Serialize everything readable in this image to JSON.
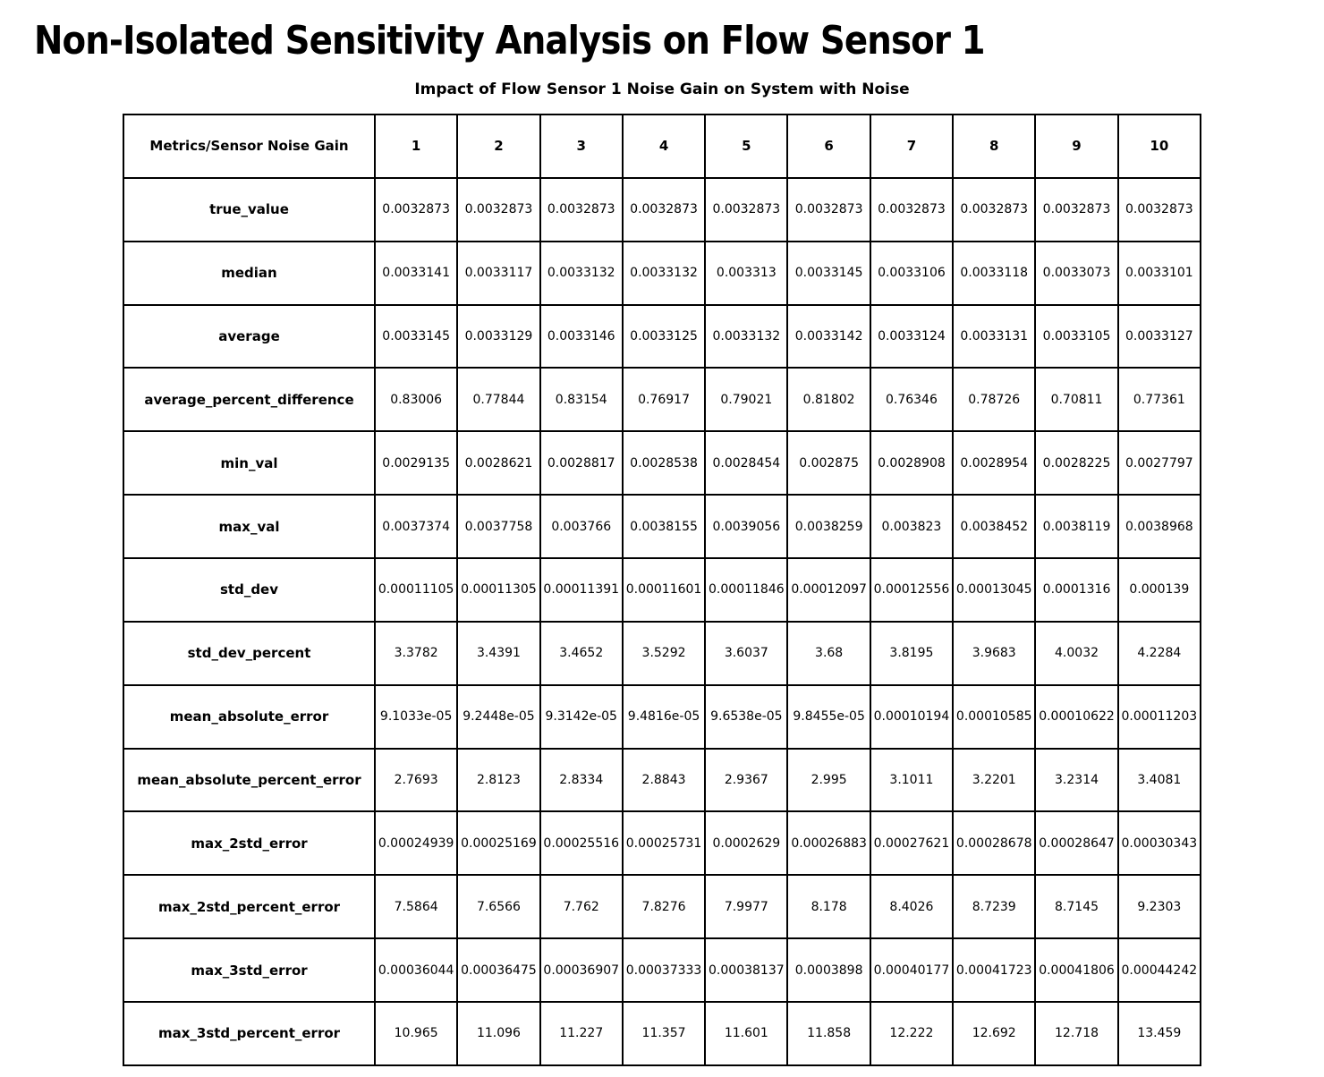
{
  "title": "Non-Isolated Sensitivity Analysis on Flow Sensor 1",
  "subtitle": "Impact of Flow Sensor 1 Noise Gain on System with Noise",
  "chart_data": {
    "type": "table",
    "title": "Non-Isolated Sensitivity Analysis on Flow Sensor 1",
    "subtitle": "Impact of Flow Sensor 1 Noise Gain on System with Noise",
    "columns": [
      "Metrics/Sensor Noise Gain",
      "1",
      "2",
      "3",
      "4",
      "5",
      "6",
      "7",
      "8",
      "9",
      "10"
    ],
    "rows": [
      {
        "metric": "true_value",
        "values": [
          "0.0032873",
          "0.0032873",
          "0.0032873",
          "0.0032873",
          "0.0032873",
          "0.0032873",
          "0.0032873",
          "0.0032873",
          "0.0032873",
          "0.0032873"
        ]
      },
      {
        "metric": "median",
        "values": [
          "0.0033141",
          "0.0033117",
          "0.0033132",
          "0.0033132",
          "0.003313",
          "0.0033145",
          "0.0033106",
          "0.0033118",
          "0.0033073",
          "0.0033101"
        ]
      },
      {
        "metric": "average",
        "values": [
          "0.0033145",
          "0.0033129",
          "0.0033146",
          "0.0033125",
          "0.0033132",
          "0.0033142",
          "0.0033124",
          "0.0033131",
          "0.0033105",
          "0.0033127"
        ]
      },
      {
        "metric": "average_percent_difference",
        "values": [
          "0.83006",
          "0.77844",
          "0.83154",
          "0.76917",
          "0.79021",
          "0.81802",
          "0.76346",
          "0.78726",
          "0.70811",
          "0.77361"
        ]
      },
      {
        "metric": "min_val",
        "values": [
          "0.0029135",
          "0.0028621",
          "0.0028817",
          "0.0028538",
          "0.0028454",
          "0.002875",
          "0.0028908",
          "0.0028954",
          "0.0028225",
          "0.0027797"
        ]
      },
      {
        "metric": "max_val",
        "values": [
          "0.0037374",
          "0.0037758",
          "0.003766",
          "0.0038155",
          "0.0039056",
          "0.0038259",
          "0.003823",
          "0.0038452",
          "0.0038119",
          "0.0038968"
        ]
      },
      {
        "metric": "std_dev",
        "values": [
          "0.00011105",
          "0.00011305",
          "0.00011391",
          "0.00011601",
          "0.00011846",
          "0.00012097",
          "0.00012556",
          "0.00013045",
          "0.0001316",
          "0.000139"
        ]
      },
      {
        "metric": "std_dev_percent",
        "values": [
          "3.3782",
          "3.4391",
          "3.4652",
          "3.5292",
          "3.6037",
          "3.68",
          "3.8195",
          "3.9683",
          "4.0032",
          "4.2284"
        ]
      },
      {
        "metric": "mean_absolute_error",
        "values": [
          "9.1033e-05",
          "9.2448e-05",
          "9.3142e-05",
          "9.4816e-05",
          "9.6538e-05",
          "9.8455e-05",
          "0.00010194",
          "0.00010585",
          "0.00010622",
          "0.00011203"
        ]
      },
      {
        "metric": "mean_absolute_percent_error",
        "values": [
          "2.7693",
          "2.8123",
          "2.8334",
          "2.8843",
          "2.9367",
          "2.995",
          "3.1011",
          "3.2201",
          "3.2314",
          "3.4081"
        ]
      },
      {
        "metric": "max_2std_error",
        "values": [
          "0.00024939",
          "0.00025169",
          "0.00025516",
          "0.00025731",
          "0.0002629",
          "0.00026883",
          "0.00027621",
          "0.00028678",
          "0.00028647",
          "0.00030343"
        ]
      },
      {
        "metric": "max_2std_percent_error",
        "values": [
          "7.5864",
          "7.6566",
          "7.762",
          "7.8276",
          "7.9977",
          "8.178",
          "8.4026",
          "8.7239",
          "8.7145",
          "9.2303"
        ]
      },
      {
        "metric": "max_3std_error",
        "values": [
          "0.00036044",
          "0.00036475",
          "0.00036907",
          "0.00037333",
          "0.00038137",
          "0.0003898",
          "0.00040177",
          "0.00041723",
          "0.00041806",
          "0.00044242"
        ]
      },
      {
        "metric": "max_3std_percent_error",
        "values": [
          "10.965",
          "11.096",
          "11.227",
          "11.357",
          "11.601",
          "11.858",
          "12.222",
          "12.692",
          "12.718",
          "13.459"
        ]
      }
    ]
  }
}
